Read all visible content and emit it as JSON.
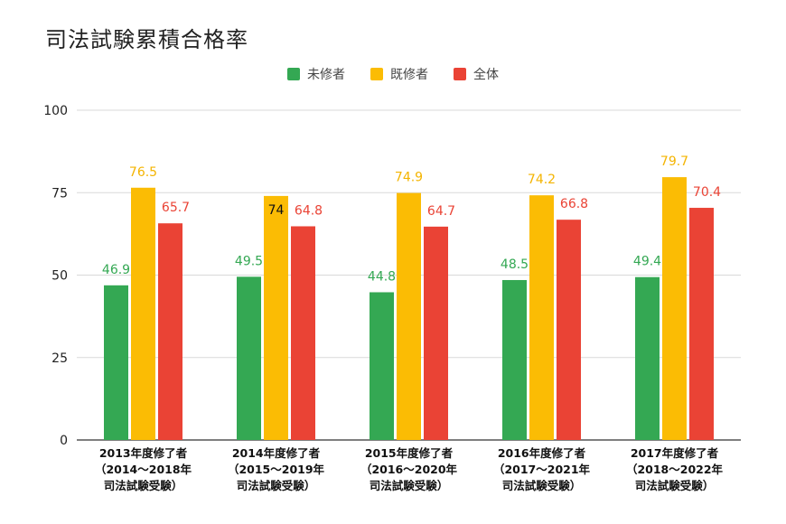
{
  "chart_data": {
    "type": "bar",
    "title": "司法試験累積合格率",
    "categories": [
      [
        "2013年度修了者",
        "（2014〜2018年",
        "司法試験受験）"
      ],
      [
        "2014年度修了者",
        "（2015〜2019年",
        "司法試験受験）"
      ],
      [
        "2015年度修了者",
        "（2016〜2020年",
        "司法試験受験）"
      ],
      [
        "2016年度修了者",
        "（2017〜2021年",
        "司法試験受験）"
      ],
      [
        "2017年度修了者",
        "（2018〜2022年",
        "司法試験受験）"
      ]
    ],
    "series": [
      {
        "name": "未修者",
        "color": "#34a853",
        "label_color": "#34a853",
        "values": [
          46.9,
          49.5,
          44.8,
          48.5,
          49.4
        ],
        "labels": [
          "46.9",
          "49.5",
          "44.8",
          "48.5",
          "49.4"
        ]
      },
      {
        "name": "既修者",
        "color": "#fbbc04",
        "label_color": "#f4b400",
        "values": [
          76.5,
          74,
          74.9,
          74.2,
          79.7
        ],
        "labels": [
          "76.5",
          "74",
          "74.9",
          "74.2",
          "79.7"
        ]
      },
      {
        "name": "全体",
        "color": "#ea4335",
        "label_color": "#ea4335",
        "values": [
          65.7,
          64.8,
          64.7,
          66.8,
          70.4
        ],
        "labels": [
          "65.7",
          "64.8",
          "64.7",
          "66.8",
          "70.4"
        ]
      }
    ],
    "ylim": [
      0,
      100
    ],
    "yticks": [
      "0",
      "25",
      "50",
      "75",
      "100"
    ],
    "grid": true,
    "legend_position": "top-center",
    "xlabel": "",
    "ylabel": ""
  }
}
